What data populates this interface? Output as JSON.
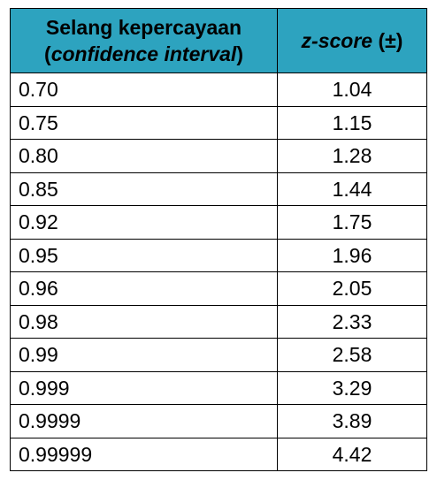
{
  "table": {
    "header": {
      "col1_line1": "Selang kepercayaan",
      "col1_line2_open": "(",
      "col1_line2_italic": "confidence interval",
      "col1_line2_close": ")",
      "col2_italic": "z-score",
      "col2_suffix": " (±)"
    },
    "rows": [
      {
        "confidence": "0.70",
        "z": "1.04"
      },
      {
        "confidence": "0.75",
        "z": "1.15"
      },
      {
        "confidence": "0.80",
        "z": "1.28"
      },
      {
        "confidence": "0.85",
        "z": "1.44"
      },
      {
        "confidence": "0.92",
        "z": "1.75"
      },
      {
        "confidence": "0.95",
        "z": "1.96"
      },
      {
        "confidence": "0.96",
        "z": "2.05"
      },
      {
        "confidence": "0.98",
        "z": "2.33"
      },
      {
        "confidence": "0.99",
        "z": "2.58"
      },
      {
        "confidence": "0.999",
        "z": "3.29"
      },
      {
        "confidence": "0.9999",
        "z": "3.89"
      },
      {
        "confidence": "0.99999",
        "z": "4.42"
      }
    ],
    "colors": {
      "header_bg": "#2da3bf",
      "border": "#000000"
    }
  }
}
